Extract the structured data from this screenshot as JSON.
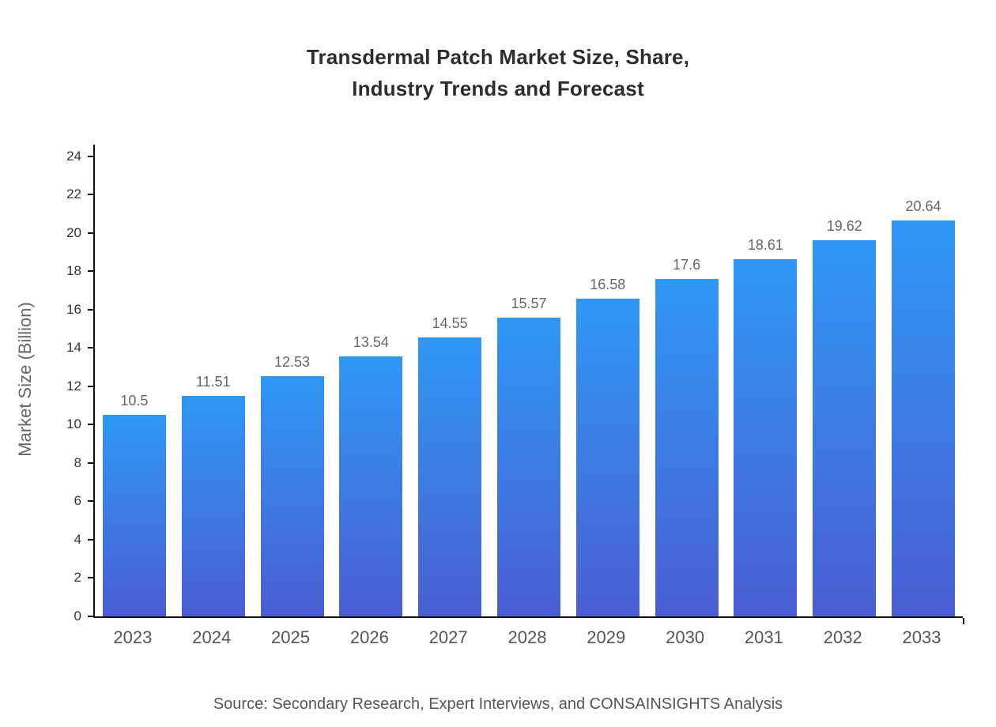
{
  "title": {
    "line1": "Transdermal Patch Market Size, Share,",
    "line2": "Industry Trends and Forecast"
  },
  "y_axis_title": "Market Size (Billion)",
  "source": "Source: Secondary Research, Expert Interviews, and CONSAINSIGHTS Analysis",
  "colors": {
    "bar_gradient_top": "#2f98f5",
    "bar_gradient_bottom": "#4a5ed2",
    "axis": "#111111",
    "title_text": "#2d2d2d",
    "tick_text": "#333333",
    "category_text": "#555555",
    "value_label_text": "#666666"
  },
  "chart_data": {
    "type": "bar",
    "title": "Transdermal Patch Market Size, Share, Industry Trends and Forecast",
    "categories": [
      "2023",
      "2024",
      "2025",
      "2026",
      "2027",
      "2028",
      "2029",
      "2030",
      "2031",
      "2032",
      "2033"
    ],
    "values": [
      10.5,
      11.51,
      12.53,
      13.54,
      14.55,
      15.57,
      16.58,
      17.6,
      18.61,
      19.62,
      20.64
    ],
    "value_labels": [
      "10.5",
      "11.51",
      "12.53",
      "13.54",
      "14.55",
      "15.57",
      "16.58",
      "17.6",
      "18.61",
      "19.62",
      "20.64"
    ],
    "xlabel": "",
    "ylabel": "Market Size (Billion)",
    "ylim": [
      0,
      24.6
    ],
    "yticks": [
      0,
      2,
      4,
      6,
      8,
      10,
      12,
      14,
      16,
      18,
      20,
      22,
      24
    ],
    "grid": false,
    "legend": "none"
  }
}
